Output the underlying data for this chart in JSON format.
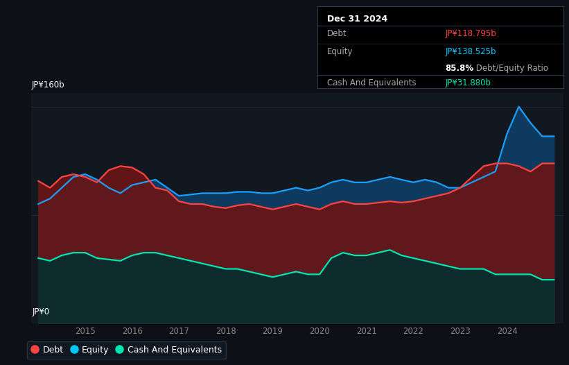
{
  "bg_color": "#0d1117",
  "chart_bg": "#111820",
  "grid_color": "#1e2d40",
  "title_box_bg": "#000000",
  "title_box_border": "#2a3a4a",
  "title_box": {
    "date": "Dec 31 2024",
    "debt_label": "Debt",
    "debt_value": "JP¥118.795b",
    "debt_color": "#ff4444",
    "equity_label": "Equity",
    "equity_value": "JP¥138.525b",
    "equity_color": "#00c8ff",
    "ratio_bold": "85.8%",
    "ratio_text": " Debt/Equity Ratio",
    "ratio_color": "#888888",
    "cash_label": "Cash And Equivalents",
    "cash_value": "JP¥31.880b",
    "cash_color": "#00e5b0"
  },
  "ylabel_top": "JP¥160b",
  "ylabel_bottom": "JP¥0",
  "x_labels": [
    "2015",
    "2016",
    "2017",
    "2018",
    "2019",
    "2020",
    "2021",
    "2022",
    "2023",
    "2024"
  ],
  "legend": [
    {
      "label": "Debt",
      "color": "#ff4444"
    },
    {
      "label": "Equity",
      "color": "#00c8ff"
    },
    {
      "label": "Cash And Equivalents",
      "color": "#00e5b0"
    }
  ],
  "debt_line_color": "#ff4444",
  "equity_line_color": "#1a9fff",
  "cash_line_color": "#00e5b0",
  "debt_fill_color": "#6b1515",
  "equity_fill_color": "#0d3a5e",
  "cash_fill_color": "#0a2e2e",
  "years": [
    2014.0,
    2014.25,
    2014.5,
    2014.75,
    2015.0,
    2015.25,
    2015.5,
    2015.75,
    2016.0,
    2016.25,
    2016.5,
    2016.75,
    2017.0,
    2017.25,
    2017.5,
    2017.75,
    2018.0,
    2018.25,
    2018.5,
    2018.75,
    2019.0,
    2019.25,
    2019.5,
    2019.75,
    2020.0,
    2020.25,
    2020.5,
    2020.75,
    2021.0,
    2021.25,
    2021.5,
    2021.75,
    2022.0,
    2022.25,
    2022.5,
    2022.75,
    2023.0,
    2023.25,
    2023.5,
    2023.75,
    2024.0,
    2024.25,
    2024.5,
    2024.75,
    2025.0
  ],
  "debt": [
    105,
    100,
    108,
    110,
    108,
    104,
    113,
    116,
    115,
    110,
    100,
    98,
    90,
    88,
    88,
    86,
    85,
    87,
    88,
    86,
    84,
    86,
    88,
    86,
    84,
    88,
    90,
    88,
    88,
    89,
    90,
    89,
    90,
    92,
    94,
    96,
    100,
    108,
    116,
    118,
    118,
    116,
    112,
    118,
    118
  ],
  "equity": [
    88,
    92,
    100,
    108,
    110,
    106,
    100,
    96,
    102,
    104,
    106,
    100,
    94,
    95,
    96,
    96,
    96,
    97,
    97,
    96,
    96,
    98,
    100,
    98,
    100,
    104,
    106,
    104,
    104,
    106,
    108,
    106,
    104,
    106,
    104,
    100,
    100,
    104,
    108,
    112,
    140,
    160,
    148,
    138,
    138
  ],
  "cash": [
    48,
    46,
    50,
    52,
    52,
    48,
    47,
    46,
    50,
    52,
    52,
    50,
    48,
    46,
    44,
    42,
    40,
    40,
    38,
    36,
    34,
    36,
    38,
    36,
    36,
    48,
    52,
    50,
    50,
    52,
    54,
    50,
    48,
    46,
    44,
    42,
    40,
    40,
    40,
    36,
    36,
    36,
    36,
    32,
    32
  ]
}
